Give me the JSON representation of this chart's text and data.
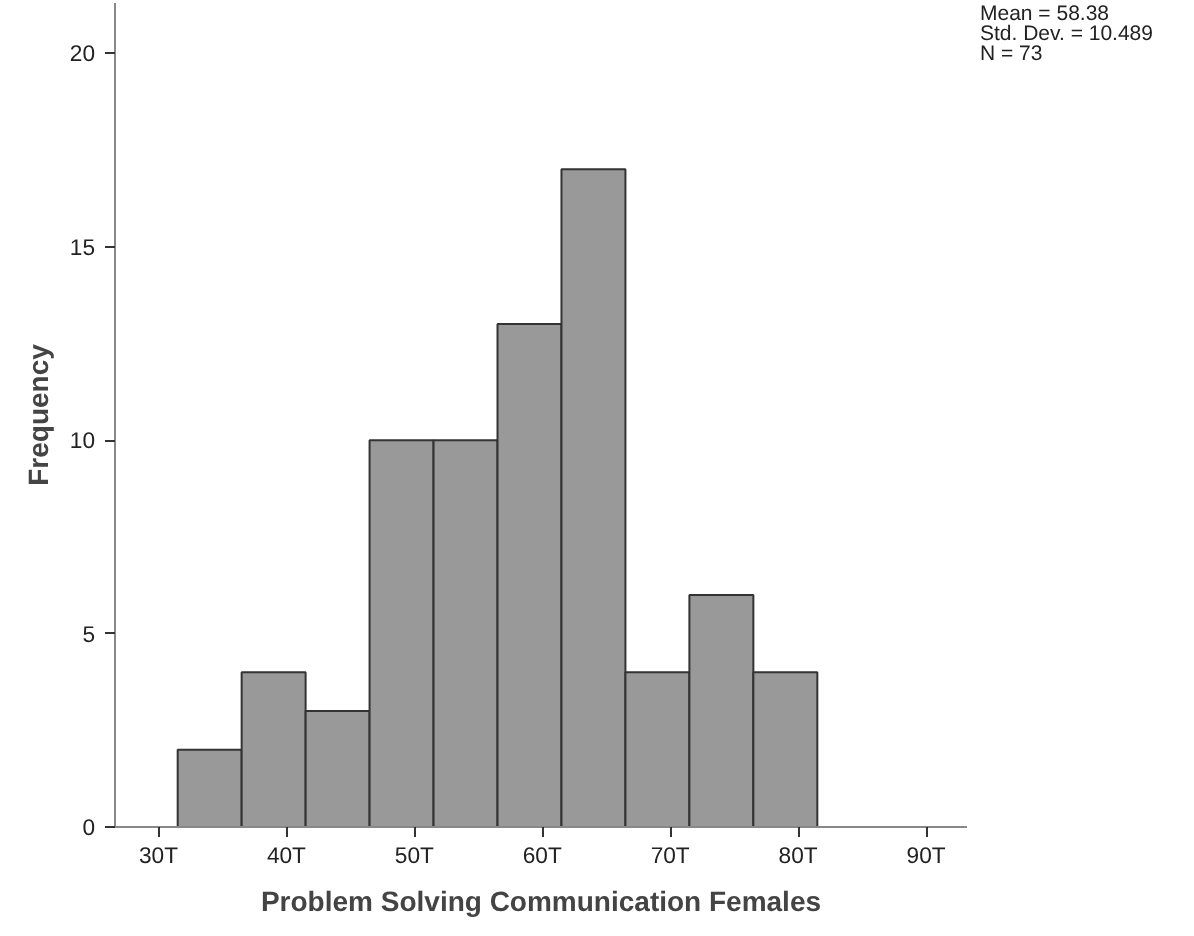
{
  "chart_data": {
    "type": "histogram",
    "xlabel": "Problem Solving Communication Females",
    "ylabel": "Frequency",
    "bins": [
      31.5,
      36.5,
      41.5,
      46.5,
      51.5,
      56.5,
      61.5,
      66.5,
      71.5,
      76.5,
      81.5
    ],
    "values": [
      2,
      4,
      3,
      10,
      10,
      13,
      17,
      4,
      6,
      4
    ],
    "color": "#999999",
    "xlim": [
      26.6,
      93.2
    ],
    "ylim": [
      0,
      21.3
    ],
    "xticks": [
      {
        "value": 30,
        "label": "30T"
      },
      {
        "value": 40,
        "label": "40T"
      },
      {
        "value": 50,
        "label": "50T"
      },
      {
        "value": 60,
        "label": "60T"
      },
      {
        "value": 70,
        "label": "70T"
      },
      {
        "value": 80,
        "label": "80T"
      },
      {
        "value": 90,
        "label": "90T"
      }
    ],
    "yticks": [
      0,
      5,
      10,
      15,
      20
    ],
    "grid": false,
    "annotations": [
      "Mean = 58.38",
      "Std. Dev. = 10.489",
      "N = 73"
    ]
  }
}
